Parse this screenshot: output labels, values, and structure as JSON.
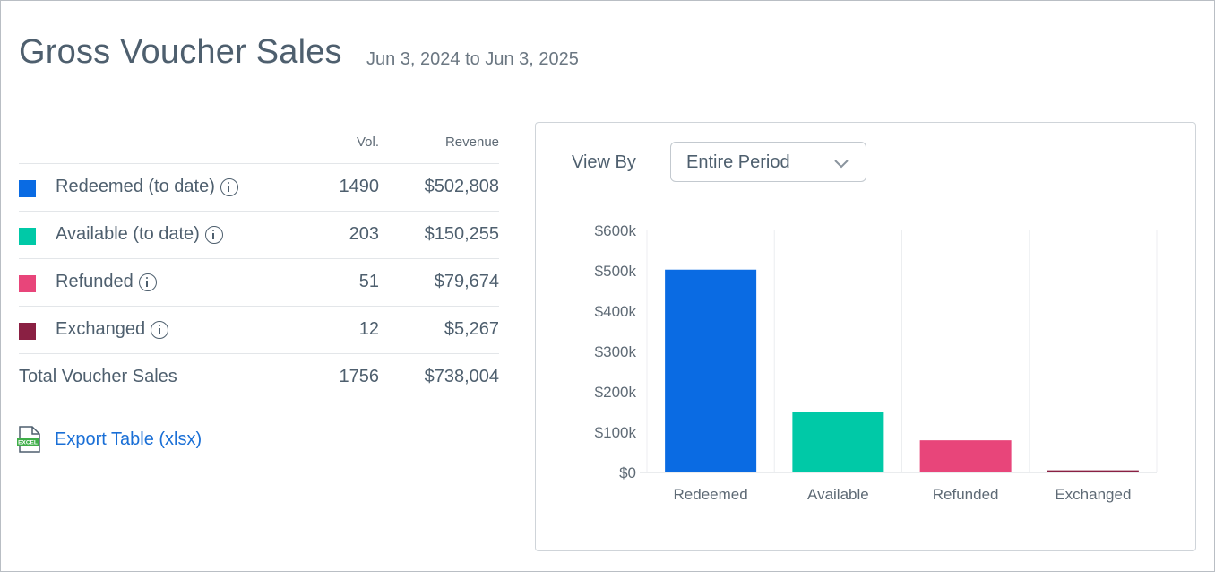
{
  "header": {
    "title": "Gross Voucher Sales",
    "date_range": "Jun 3, 2024 to Jun 3, 2025"
  },
  "table": {
    "col_vol": "Vol.",
    "col_revenue": "Revenue",
    "rows": [
      {
        "label": "Redeemed (to date)",
        "vol": "1490",
        "revenue": "$502,808",
        "color": "#0a6be3"
      },
      {
        "label": "Available (to date)",
        "vol": "203",
        "revenue": "$150,255",
        "color": "#00c9a7"
      },
      {
        "label": "Refunded",
        "vol": "51",
        "revenue": "$79,674",
        "color": "#e8457a"
      },
      {
        "label": "Exchanged",
        "vol": "12",
        "revenue": "$5,267",
        "color": "#8a2043"
      }
    ],
    "total": {
      "label": "Total Voucher Sales",
      "vol": "1756",
      "revenue": "$738,004"
    }
  },
  "export": {
    "label": "Export Table (xlsx)",
    "icon_text": "EXCEL"
  },
  "controls": {
    "view_by_label": "View By",
    "view_by_value": "Entire Period"
  },
  "chart_data": {
    "type": "bar",
    "title": "",
    "xlabel": "",
    "ylabel": "",
    "categories": [
      "Redeemed",
      "Available",
      "Refunded",
      "Exchanged"
    ],
    "values": [
      502808,
      150255,
      79674,
      5267
    ],
    "colors": [
      "#0a6be3",
      "#00c9a7",
      "#e8457a",
      "#8a2043"
    ],
    "ylim": [
      0,
      600000
    ],
    "y_ticks": [
      0,
      100000,
      200000,
      300000,
      400000,
      500000,
      600000
    ],
    "y_tick_labels": [
      "$0",
      "$100k",
      "$200k",
      "$300k",
      "$400k",
      "$500k",
      "$600k"
    ],
    "grid": "vertical separators",
    "legend": "none"
  }
}
